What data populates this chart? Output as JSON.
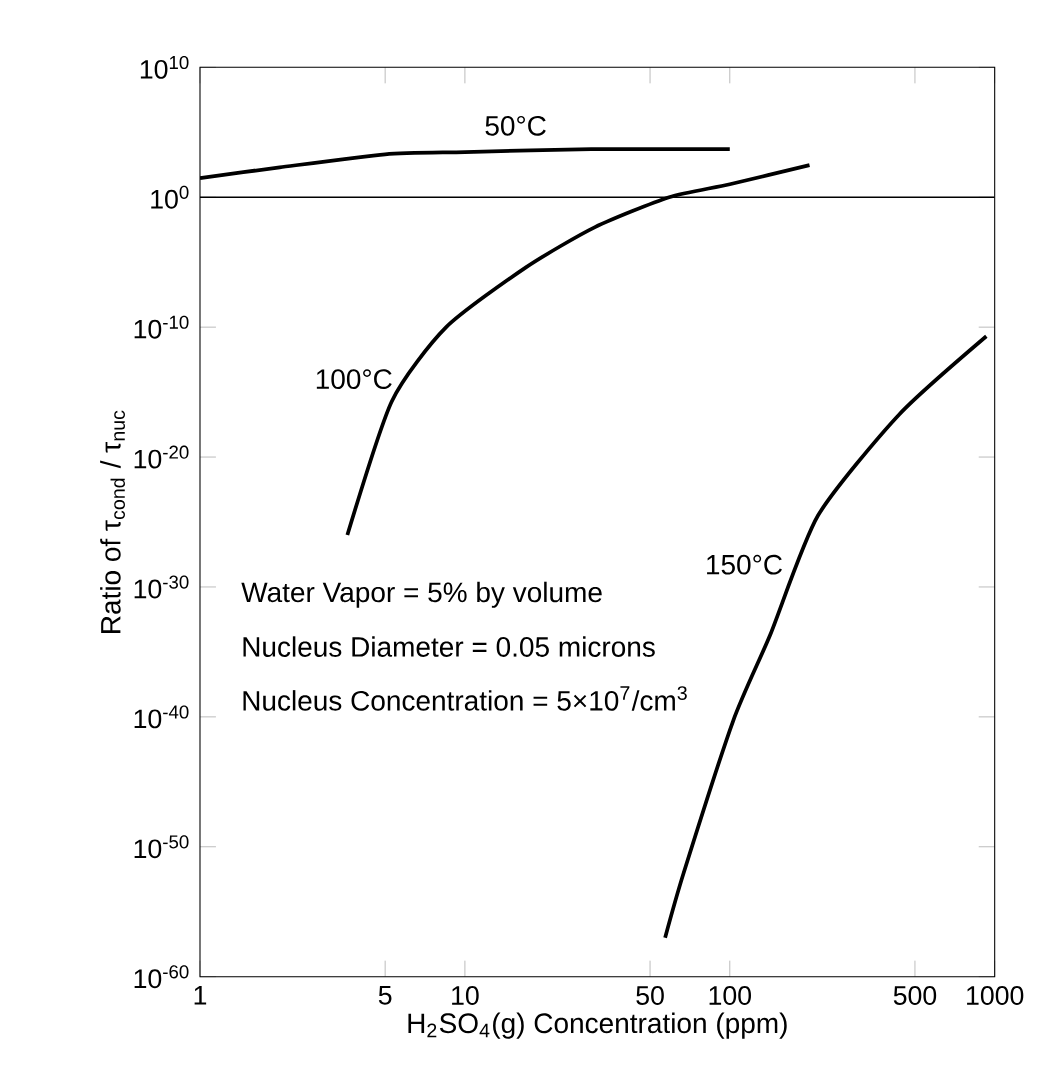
{
  "chart_data": {
    "type": "line",
    "xlabel": "H$_{2}$SO$_{4}$(g) Concentration    (ppm)",
    "ylabel": "Ratio of  τ$_{cond}$ / τ$_{nuc}$",
    "log": "xy",
    "xlim": [
      1,
      1000
    ],
    "ylim": [
      1e-60,
      10000000000.0
    ],
    "xticks": [
      1,
      5,
      10,
      50,
      100,
      500,
      1000
    ],
    "yticks": [
      {
        "value": 10000000000.0,
        "label": "10$^{10}$"
      },
      {
        "value": 1,
        "label": "10$^{0}$"
      },
      {
        "value": 1e-10,
        "label": "10$^{-10}$"
      },
      {
        "value": 1e-20,
        "label": "10$^{-20}$"
      },
      {
        "value": 1e-30,
        "label": "10$^{-30}$"
      },
      {
        "value": 1e-40,
        "label": "10$^{-40}$"
      },
      {
        "value": 1e-50,
        "label": "10$^{-50}$"
      },
      {
        "value": 1e-60,
        "label": "10$^{-60}$"
      }
    ],
    "marker": "none",
    "line_style": "solid",
    "series": [
      {
        "name": "50°C",
        "color": "#000000",
        "x": [
          1,
          2,
          5,
          10,
          30,
          100
        ],
        "values": [
          30,
          200,
          2000,
          3000,
          5000,
          5000
        ]
      },
      {
        "name": "100°C",
        "color": "#000000",
        "x": [
          3.6,
          5.3,
          8.5,
          17,
          31,
          59,
          100,
          200
        ],
        "values": [
          1e-26,
          2e-16,
          1e-10,
          4e-06,
          0.005,
          1,
          10,
          300
        ]
      },
      {
        "name": "150°C",
        "color": "#000000",
        "x": [
          57,
          67,
          103,
          142,
          215,
          437,
          930
        ],
        "values": [
          1e-57,
          1e-52,
          5e-41,
          2e-34,
          3e-25,
          2e-17,
          2e-11
        ]
      }
    ],
    "ref_lines": [
      {
        "axis": "y",
        "value": 1,
        "color": "#000000"
      }
    ],
    "annotations": [
      "Water Vapor = 5% by volume",
      "Nucleus Diameter = 0.05 microns",
      "Nucleus Concentration = 5×10$^{7}$/cm$^{3}$"
    ]
  }
}
